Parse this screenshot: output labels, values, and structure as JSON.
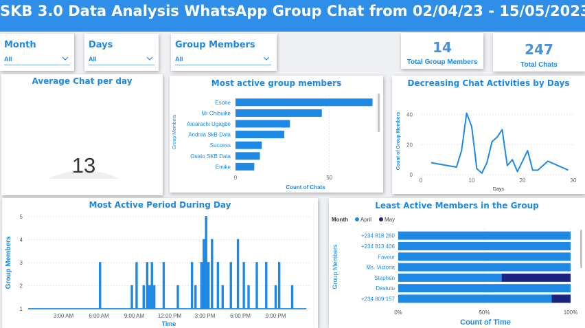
{
  "header": {
    "title": "SKB 3.0 Data Analysis WhatsApp Group Chat from  02/04/23 - 15/05/2023"
  },
  "slicers": [
    {
      "label": "Month",
      "value": "All"
    },
    {
      "label": "Days",
      "value": "All"
    },
    {
      "label": "Group Members",
      "value": "All"
    }
  ],
  "kpis": {
    "members": {
      "value": "14",
      "label": "Total Group Members"
    },
    "chats": {
      "value": "247",
      "label": "Total Chats"
    }
  },
  "colors": {
    "accent": "#1e88e5",
    "banner": "#2f8fe8",
    "may": "#1a237e",
    "gauge_track": "#f0efee"
  },
  "chart_data": [
    {
      "type": "gauge",
      "title": "Average Chat per day",
      "value": 13,
      "value_label": "13",
      "min": 0,
      "max": 160
    },
    {
      "type": "bar",
      "orientation": "horizontal",
      "title": "Most active group members",
      "ylabel": "Group Members",
      "xlabel": "Count of Chats",
      "categories": [
        "Esohe",
        "Mr Chibuike",
        "Amarachi Ugagbe",
        "Andrea SkB Data",
        "Success",
        "Osato SKB Data",
        "Emike"
      ],
      "values": [
        73,
        46,
        29,
        26,
        14,
        13,
        10
      ],
      "xlim": [
        0,
        75
      ],
      "xticks": [
        "0",
        "50"
      ],
      "xtick_values": [
        0,
        50
      ]
    },
    {
      "type": "line",
      "title": "Decreasing Chat Activities by Days",
      "xlabel": "Days",
      "ylabel": "Count of Group Members",
      "x": [
        2,
        7,
        8,
        9,
        10,
        11,
        12,
        13,
        14,
        15,
        16,
        17,
        18,
        19,
        21,
        22,
        23,
        25,
        29
      ],
      "y": [
        8,
        5,
        16,
        41,
        32,
        4,
        1,
        8,
        22,
        25,
        30,
        6,
        10,
        2,
        16,
        3,
        3,
        9,
        3
      ],
      "xlim": [
        0,
        30
      ],
      "ylim": [
        0,
        44
      ],
      "xticks": [
        "0",
        "10",
        "20",
        "30"
      ],
      "xtick_values": [
        0,
        10,
        20,
        30
      ],
      "yticks": [
        "0",
        "20",
        "40"
      ],
      "ytick_values": [
        0,
        20,
        40
      ]
    },
    {
      "type": "line",
      "title": "Most Active Period During Day",
      "xlabel": "Time",
      "ylabel": "Group Members",
      "xlim": [
        0,
        24
      ],
      "ylim": [
        1,
        5
      ],
      "xticks": [
        "3:00 AM",
        "6:00 AM",
        "9:00 AM",
        "12:00 PM",
        "3:00 PM",
        "6:00 PM",
        "9:00 PM"
      ],
      "xtick_values": [
        3,
        6,
        9,
        12,
        15,
        18,
        21
      ],
      "yticks": [
        "1",
        "2",
        "3",
        "4",
        "5"
      ],
      "ytick_values": [
        1,
        2,
        3,
        4,
        5
      ],
      "spikes": [
        [
          6.1,
          3
        ],
        [
          8.8,
          2
        ],
        [
          9.2,
          3
        ],
        [
          9.8,
          2
        ],
        [
          10.1,
          3
        ],
        [
          10.3,
          2
        ],
        [
          10.5,
          3
        ],
        [
          10.7,
          2
        ],
        [
          11.5,
          3
        ],
        [
          12.7,
          2
        ],
        [
          13.9,
          3
        ],
        [
          14.2,
          2
        ],
        [
          14.7,
          3
        ],
        [
          14.9,
          4
        ],
        [
          15.1,
          5
        ],
        [
          15.3,
          3
        ],
        [
          15.6,
          4
        ],
        [
          16.1,
          3
        ],
        [
          16.5,
          2
        ],
        [
          17.2,
          3
        ],
        [
          17.8,
          4
        ],
        [
          18.3,
          3
        ],
        [
          18.7,
          2
        ],
        [
          19.4,
          3
        ],
        [
          20.2,
          3
        ],
        [
          21.0,
          2
        ],
        [
          21.3,
          3
        ],
        [
          22.4,
          2
        ]
      ]
    },
    {
      "type": "bar",
      "orientation": "horizontal",
      "stacked": "percent",
      "title": "Least Active Members in the Group",
      "legend_title": "Month",
      "legend": [
        "April",
        "May"
      ],
      "ylabel": "Group Members",
      "xlabel": "Count of Time",
      "categories": [
        "+234 818 260",
        "+234 813 406",
        "Favour",
        "Ms. Victoria",
        "Stephen",
        "Destutu",
        "+234 809 157"
      ],
      "series": [
        {
          "name": "April",
          "values": [
            100,
            100,
            100,
            100,
            60,
            100,
            89
          ]
        },
        {
          "name": "May",
          "values": [
            0,
            0,
            0,
            0,
            40,
            0,
            11
          ]
        }
      ],
      "xlim": [
        0,
        100
      ],
      "xticks": [
        "0%",
        "50%",
        "100%"
      ],
      "xtick_values": [
        0,
        50,
        100
      ]
    }
  ]
}
